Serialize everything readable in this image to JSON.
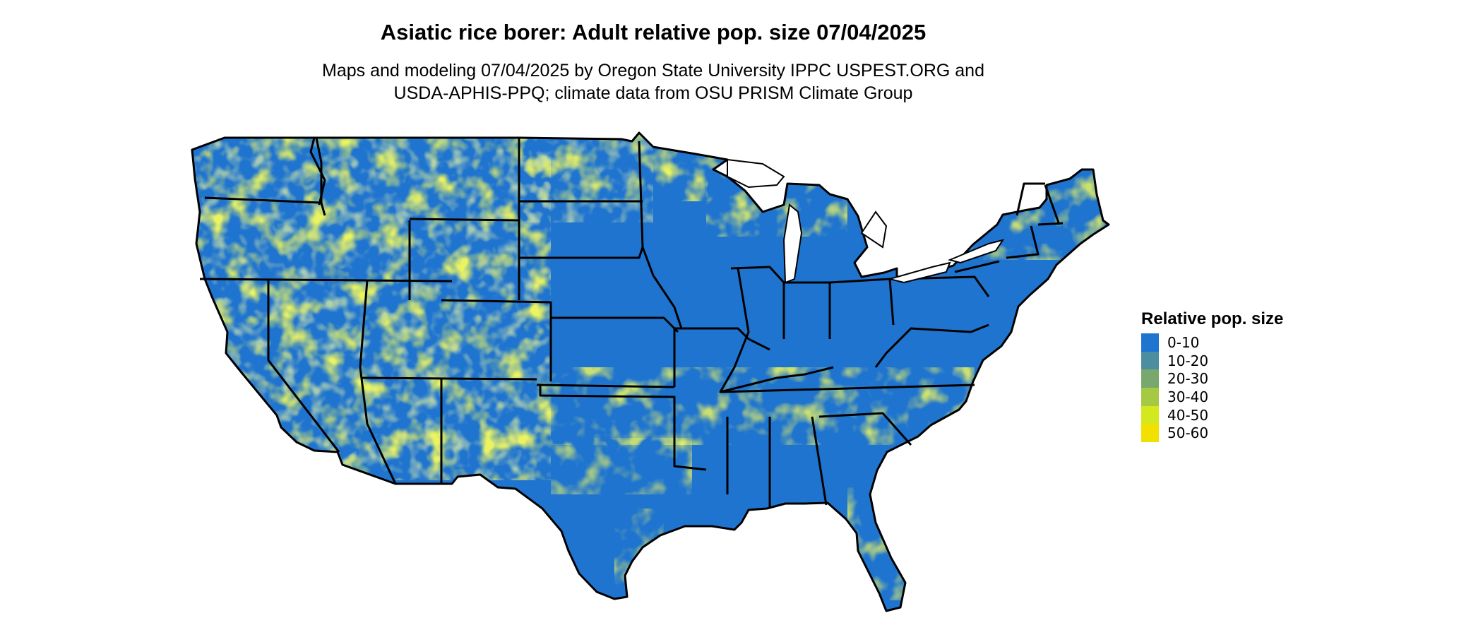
{
  "title": "Asiatic rice borer: Adult relative pop. size 07/04/2025",
  "subtitle": [
    "Maps and modeling 07/04/2025 by Oregon State University IPPC USPEST.ORG and",
    "USDA-APHIS-PPQ; climate data from OSU PRISM Climate Group"
  ],
  "legend": {
    "title": "Relative pop. size",
    "items": [
      {
        "label": "0-10",
        "color": "#1f74d0"
      },
      {
        "label": "10-20",
        "color": "#4a8ea0"
      },
      {
        "label": "20-30",
        "color": "#78a86e"
      },
      {
        "label": "30-40",
        "color": "#a6c943"
      },
      {
        "label": "40-50",
        "color": "#d4e81f"
      },
      {
        "label": "50-60",
        "color": "#f2e000"
      }
    ]
  },
  "map": {
    "region": "Contiguous United States",
    "base_color": "#1f74d0",
    "border_color": "#000000"
  }
}
